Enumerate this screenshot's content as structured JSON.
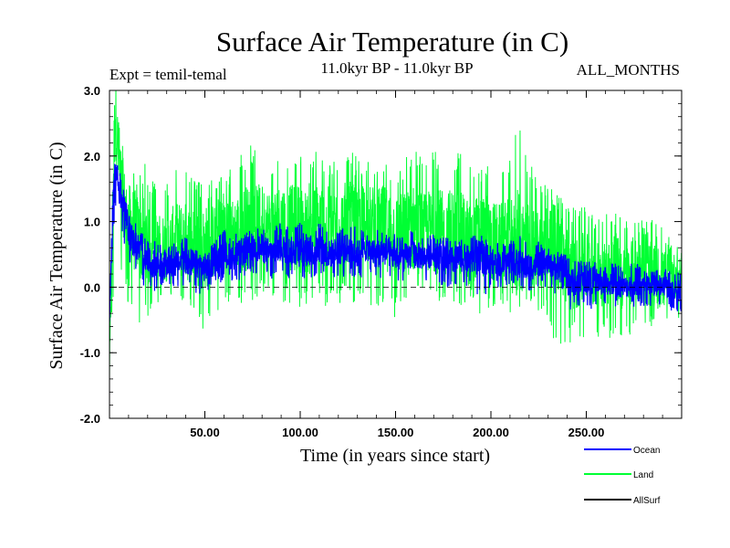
{
  "header": {
    "title": "Surface Air Temperature (in C)",
    "experiment": "Expt = temil-temal",
    "period": "11.0kyr BP - 11.0kyr BP",
    "months": "ALL_MONTHS"
  },
  "colors": {
    "ocean": "#0000ff",
    "land": "#00ff33",
    "allsurf": "#000000",
    "zero_line": "#000000"
  },
  "chart_data": {
    "type": "line",
    "title": "Surface Air Temperature (in C)",
    "xlabel": "Time (in years since start)",
    "ylabel": "Surface Air Temperature (in C)",
    "xlim": [
      0,
      300
    ],
    "ylim": [
      -2.0,
      3.0
    ],
    "x_ticks": [
      {
        "value": 50,
        "label": "50.00"
      },
      {
        "value": 100,
        "label": "100.00"
      },
      {
        "value": 150,
        "label": "150.00"
      },
      {
        "value": 200,
        "label": "200.00"
      },
      {
        "value": 250,
        "label": "250.00"
      }
    ],
    "y_ticks": [
      {
        "value": 3.0,
        "label": "3.0"
      },
      {
        "value": 2.0,
        "label": "2.0"
      },
      {
        "value": 1.0,
        "label": "1.0"
      },
      {
        "value": 0.0,
        "label": "0.0"
      },
      {
        "value": -1.0,
        "label": "-1.0"
      },
      {
        "value": -2.0,
        "label": "-2.0"
      }
    ],
    "reference_line": {
      "y": 0.0,
      "style": "dashed"
    },
    "legend": {
      "placement": "bottom-right",
      "entries": [
        "Ocean",
        "Land",
        "AllSurf"
      ]
    },
    "series": [
      {
        "name": "Land",
        "color": "#00ff33",
        "x": [
          0,
          1,
          2,
          3,
          4,
          5,
          6,
          8,
          10,
          12,
          15,
          18,
          20,
          22,
          25,
          30,
          35,
          40,
          45,
          50,
          55,
          60,
          65,
          70,
          75,
          80,
          85,
          90,
          95,
          100,
          105,
          110,
          115,
          120,
          125,
          130,
          135,
          140,
          145,
          150,
          155,
          160,
          165,
          170,
          175,
          180,
          185,
          190,
          195,
          200,
          205,
          210,
          215,
          220,
          225,
          230,
          235,
          240,
          245,
          250,
          255,
          260,
          265,
          270,
          275,
          280,
          285,
          290,
          295,
          300
        ],
        "values": [
          -1.3,
          0.3,
          1.6,
          2.7,
          2.3,
          1.9,
          1.6,
          1.2,
          1.0,
          0.9,
          0.8,
          0.7,
          0.6,
          0.6,
          0.6,
          0.6,
          0.7,
          0.7,
          0.6,
          0.6,
          0.7,
          0.9,
          0.8,
          0.9,
          0.9,
          1.0,
          0.9,
          1.0,
          0.9,
          0.9,
          0.8,
          1.0,
          0.9,
          0.9,
          1.0,
          0.9,
          1.0,
          0.9,
          0.9,
          0.8,
          0.8,
          0.9,
          0.8,
          0.9,
          0.8,
          0.8,
          0.8,
          0.7,
          0.8,
          0.7,
          0.7,
          0.7,
          0.7,
          0.6,
          0.6,
          0.7,
          0.6,
          0.3,
          0.2,
          0.3,
          0.3,
          0.2,
          0.3,
          0.1,
          0.3,
          0.2,
          0.2,
          0.1,
          0.2,
          0.1
        ],
        "min": [
          -1.3,
          -0.6,
          -0.3,
          0.2,
          0.6,
          0.4,
          0.2,
          -0.1,
          -0.3,
          -0.5,
          -0.5,
          -0.8,
          -0.5,
          -0.3,
          -0.4,
          -0.3,
          -0.3,
          -0.4,
          -0.5,
          -0.9,
          -0.4,
          -0.3,
          -0.2,
          -0.3,
          -0.2,
          -0.1,
          -0.3,
          -0.2,
          -0.3,
          -0.3,
          -0.4,
          -0.2,
          -0.4,
          -0.3,
          -0.2,
          -0.4,
          -0.3,
          -0.3,
          -0.4,
          -0.5,
          -0.4,
          -0.3,
          -0.3,
          -0.3,
          -0.4,
          -0.5,
          -0.3,
          -0.2,
          -0.5,
          -0.3,
          -0.3,
          -0.4,
          -0.4,
          -0.5,
          -0.4,
          -0.5,
          -1.0,
          -0.9,
          -0.8,
          -0.8,
          -1.1,
          -0.7,
          -0.9,
          -0.8,
          -0.7,
          -0.8,
          -0.7,
          -0.8,
          -0.6,
          -0.5
        ],
        "max": [
          -0.4,
          1.1,
          2.1,
          2.7,
          2.5,
          2.6,
          2.4,
          2.0,
          1.8,
          1.9,
          1.7,
          2.0,
          1.8,
          1.7,
          1.5,
          1.6,
          1.9,
          1.8,
          1.7,
          1.5,
          1.7,
          1.9,
          1.8,
          2.1,
          2.2,
          2.0,
          1.8,
          2.0,
          2.1,
          2.2,
          1.9,
          2.2,
          1.9,
          2.0,
          2.1,
          2.0,
          1.9,
          2.0,
          2.0,
          1.8,
          2.0,
          2.2,
          2.0,
          2.1,
          2.0,
          2.2,
          2.0,
          2.1,
          1.9,
          2.0,
          1.8,
          2.0,
          2.6,
          1.9,
          1.8,
          1.6,
          1.4,
          1.4,
          1.2,
          1.3,
          1.2,
          1.1,
          1.2,
          1.0,
          1.1,
          1.0,
          1.1,
          0.9,
          0.7,
          0.6
        ]
      },
      {
        "name": "Ocean",
        "color": "#0000ff",
        "x": [
          0,
          1,
          2,
          3,
          4,
          5,
          6,
          8,
          10,
          12,
          15,
          18,
          20,
          22,
          25,
          30,
          35,
          40,
          45,
          50,
          55,
          60,
          65,
          70,
          75,
          80,
          85,
          90,
          95,
          100,
          105,
          110,
          115,
          120,
          125,
          130,
          135,
          140,
          145,
          150,
          155,
          160,
          165,
          170,
          175,
          180,
          185,
          190,
          195,
          200,
          205,
          210,
          215,
          220,
          225,
          230,
          235,
          240,
          245,
          250,
          255,
          260,
          265,
          270,
          275,
          280,
          285,
          290,
          295,
          300
        ],
        "values": [
          -0.5,
          0.5,
          1.3,
          1.8,
          1.7,
          1.5,
          1.3,
          1.1,
          0.9,
          0.7,
          0.6,
          0.45,
          0.4,
          0.35,
          0.35,
          0.3,
          0.35,
          0.4,
          0.35,
          0.3,
          0.35,
          0.5,
          0.45,
          0.55,
          0.6,
          0.6,
          0.5,
          0.6,
          0.55,
          0.55,
          0.5,
          0.6,
          0.5,
          0.55,
          0.6,
          0.5,
          0.6,
          0.5,
          0.55,
          0.45,
          0.45,
          0.5,
          0.45,
          0.5,
          0.45,
          0.4,
          0.45,
          0.4,
          0.45,
          0.4,
          0.35,
          0.4,
          0.35,
          0.3,
          0.35,
          0.35,
          0.3,
          0.1,
          0.05,
          0.1,
          0.1,
          0.05,
          0.05,
          0.0,
          0.05,
          0.0,
          0.05,
          0.0,
          0.0,
          -0.1
        ],
        "min": [
          -0.5,
          -0.2,
          0.6,
          1.2,
          1.3,
          1.1,
          0.9,
          0.6,
          0.3,
          0.2,
          0.1,
          0.0,
          0.0,
          -0.1,
          -0.1,
          0.0,
          0.0,
          0.0,
          -0.1,
          -0.1,
          0.0,
          0.1,
          0.1,
          0.1,
          0.2,
          0.2,
          0.1,
          0.2,
          0.1,
          0.1,
          0.1,
          0.2,
          0.1,
          0.1,
          0.2,
          0.1,
          0.2,
          0.1,
          0.1,
          0.0,
          0.0,
          0.1,
          0.1,
          0.1,
          0.0,
          0.0,
          0.0,
          0.0,
          -0.2,
          0.0,
          0.0,
          0.0,
          0.0,
          -0.1,
          0.0,
          0.0,
          -0.2,
          -0.4,
          -0.3,
          -0.3,
          -0.4,
          -0.3,
          -0.3,
          -0.3,
          -0.3,
          -0.3,
          -0.4,
          -0.3,
          -0.4,
          -0.4
        ],
        "max": [
          -0.3,
          1.0,
          1.6,
          2.0,
          1.9,
          1.9,
          1.7,
          1.4,
          1.2,
          1.1,
          0.9,
          0.8,
          0.7,
          0.7,
          0.7,
          0.6,
          0.7,
          0.8,
          0.7,
          0.7,
          0.7,
          0.9,
          0.8,
          0.9,
          0.9,
          1.0,
          0.9,
          1.0,
          0.9,
          1.0,
          0.8,
          1.0,
          0.9,
          0.9,
          1.0,
          0.9,
          0.9,
          0.9,
          0.9,
          0.8,
          0.8,
          0.9,
          0.8,
          0.8,
          0.8,
          0.8,
          0.8,
          0.8,
          0.8,
          0.7,
          0.7,
          0.7,
          0.8,
          0.7,
          0.7,
          0.6,
          0.6,
          0.5,
          0.4,
          0.4,
          0.4,
          0.4,
          0.4,
          0.3,
          0.4,
          0.3,
          0.3,
          0.3,
          0.3,
          0.2
        ]
      },
      {
        "name": "AllSurf",
        "color": "#000000",
        "x": [],
        "values": []
      }
    ]
  }
}
